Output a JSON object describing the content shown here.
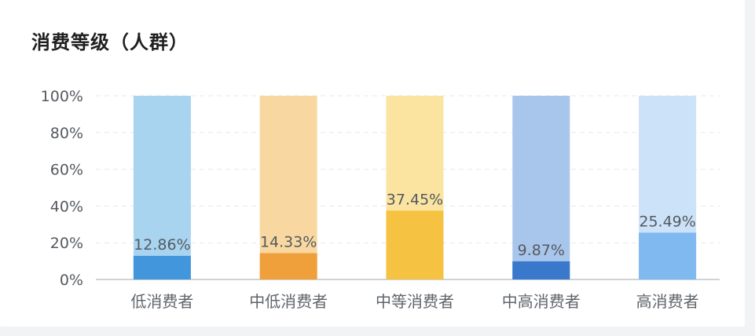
{
  "card": {
    "title": "消费等级（人群）"
  },
  "chart_data": {
    "type": "bar",
    "stacked_percent": true,
    "title": "消费等级（人群）",
    "xlabel": "",
    "ylabel": "",
    "ylim": [
      0,
      100
    ],
    "y_ticks": [
      "0%",
      "20%",
      "40%",
      "60%",
      "80%",
      "100%"
    ],
    "y_tick_values": [
      0,
      20,
      40,
      60,
      80,
      100
    ],
    "grid": true,
    "legend": "none",
    "categories": [
      "低消费者",
      "中低消费者",
      "中等消费者",
      "中高消费者",
      "高消费者"
    ],
    "values": [
      12.86,
      14.33,
      37.45,
      9.87,
      25.49
    ],
    "data_labels": [
      "12.86%",
      "14.33%",
      "37.45%",
      "9.87%",
      "25.49%"
    ],
    "colors": {
      "value": [
        "#4296dc",
        "#f0a03a",
        "#f5c242",
        "#3a78cc",
        "#80b8f0"
      ],
      "remainder": [
        "#a8d4f0",
        "#f8d8a0",
        "#fae4a0",
        "#a8c6ec",
        "#cce2f8"
      ]
    }
  }
}
